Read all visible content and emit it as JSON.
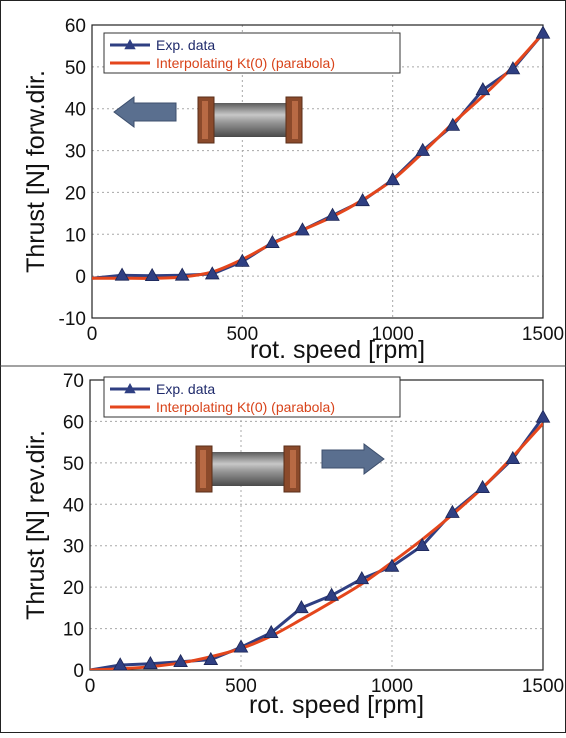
{
  "colors": {
    "exp": "#2f3f82",
    "fit": "#e4461c",
    "grid": "#a8a8a8",
    "arrow": "#5a6f8f"
  },
  "chart_data": [
    {
      "type": "line",
      "xlabel": "rot. speed [rpm]",
      "ylabel": "Thrust [N] forw.dir.",
      "xlim": [
        0,
        1500
      ],
      "ylim": [
        -10,
        60
      ],
      "xticks": [
        0,
        500,
        1000,
        1500
      ],
      "yticks": [
        -10,
        0,
        10,
        20,
        30,
        40,
        50,
        60
      ],
      "grid": true,
      "legend": "top-left",
      "arrow_direction": "left",
      "series": [
        {
          "name": "Exp. data",
          "marker": "triangle",
          "x": [
            0,
            100,
            200,
            300,
            400,
            500,
            600,
            700,
            800,
            900,
            1000,
            1100,
            1200,
            1300,
            1400,
            1500
          ],
          "y": [
            -0.5,
            0.2,
            0.1,
            0.2,
            0.5,
            3.5,
            8.0,
            11.0,
            14.5,
            18.0,
            23.0,
            30.0,
            36.0,
            44.5,
            49.5,
            58.0
          ]
        },
        {
          "name": "Interpolating Kt(0) (parabola)",
          "x": [
            0,
            100,
            200,
            300,
            400,
            500,
            600,
            700,
            800,
            900,
            1000,
            1100,
            1200,
            1300,
            1400,
            1500
          ],
          "y": [
            -0.5,
            -0.5,
            -0.5,
            -0.2,
            1.0,
            4.0,
            7.8,
            11.0,
            14.2,
            18.2,
            23.0,
            29.5,
            36.5,
            43.0,
            50.0,
            58.0
          ]
        }
      ]
    },
    {
      "type": "line",
      "xlabel": "rot. speed [rpm]",
      "ylabel": "Thrust [N] rev.dir.",
      "xlim": [
        0,
        1500
      ],
      "ylim": [
        0,
        70
      ],
      "xticks": [
        0,
        500,
        1000,
        1500
      ],
      "yticks": [
        0,
        10,
        20,
        30,
        40,
        50,
        60,
        70
      ],
      "grid": true,
      "legend": "top-left",
      "arrow_direction": "right",
      "series": [
        {
          "name": "Exp. data",
          "marker": "triangle",
          "x": [
            0,
            100,
            200,
            300,
            400,
            500,
            600,
            700,
            800,
            900,
            1000,
            1100,
            1200,
            1300,
            1400,
            1500
          ],
          "y": [
            0,
            1.2,
            1.5,
            2.0,
            2.5,
            5.5,
            9.0,
            15.0,
            18.0,
            22.0,
            25.0,
            30.0,
            38.0,
            44.0,
            51.0,
            61.0
          ]
        },
        {
          "name": "Interpolating Kt(0) (parabola)",
          "x": [
            0,
            100,
            200,
            300,
            400,
            500,
            600,
            700,
            800,
            900,
            1000,
            1100,
            1200,
            1300,
            1400,
            1500
          ],
          "y": [
            0,
            0.3,
            0.8,
            1.7,
            3.2,
            5.2,
            8.2,
            12.2,
            16.4,
            20.8,
            26.0,
            31.5,
            37.5,
            44.0,
            51.5,
            59.5
          ]
        }
      ]
    }
  ]
}
